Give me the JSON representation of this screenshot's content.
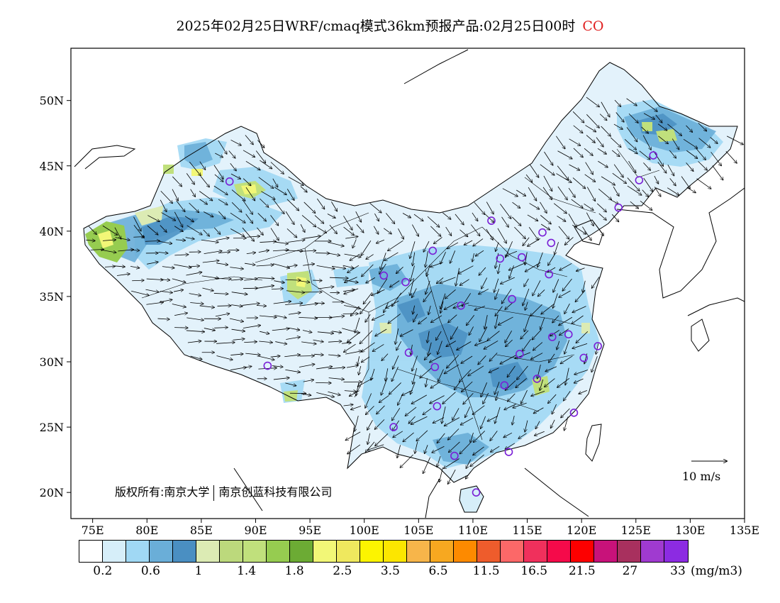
{
  "header": {
    "title": "2025年02月25日WRF/cmaq模式36km预报产品:02月25日00时",
    "pollutant": "CO"
  },
  "map": {
    "lon_range": [
      73,
      135
    ],
    "lat_range": [
      18,
      54
    ],
    "lon_ticks": [
      "75E",
      "80E",
      "85E",
      "90E",
      "95E",
      "100E",
      "105E",
      "110E",
      "115E",
      "120E",
      "125E",
      "130E",
      "135E"
    ],
    "lat_ticks": [
      "20N",
      "25N",
      "30N",
      "35N",
      "40N",
      "45N",
      "50N"
    ],
    "copyright_left": "版权所有:南京大学",
    "copyright_right": "南京创蓝科技有限公司",
    "wind_reference_label": "10 m/s",
    "stations": [
      [
        87.6,
        43.8
      ],
      [
        91.1,
        29.7
      ],
      [
        101.8,
        36.6
      ],
      [
        103.8,
        36.1
      ],
      [
        106.3,
        38.5
      ],
      [
        111.7,
        40.8
      ],
      [
        116.4,
        39.9
      ],
      [
        117.2,
        39.1
      ],
      [
        114.5,
        38.0
      ],
      [
        112.5,
        37.9
      ],
      [
        117.0,
        36.7
      ],
      [
        113.6,
        34.8
      ],
      [
        108.9,
        34.3
      ],
      [
        104.1,
        30.7
      ],
      [
        106.5,
        29.6
      ],
      [
        106.7,
        26.6
      ],
      [
        102.7,
        25.0
      ],
      [
        108.3,
        22.8
      ],
      [
        110.3,
        20.0
      ],
      [
        113.3,
        23.1
      ],
      [
        112.9,
        28.2
      ],
      [
        114.3,
        30.6
      ],
      [
        115.9,
        28.7
      ],
      [
        117.3,
        31.9
      ],
      [
        118.8,
        32.1
      ],
      [
        120.2,
        30.3
      ],
      [
        121.5,
        31.2
      ],
      [
        119.3,
        26.1
      ],
      [
        123.4,
        41.8
      ],
      [
        125.3,
        43.9
      ],
      [
        126.6,
        45.8
      ]
    ]
  },
  "legend": {
    "unit": "(mg/m3)",
    "colors": [
      "#ffffff",
      "#d6eef9",
      "#a0d8f4",
      "#6aaed8",
      "#4a8fc2",
      "#dcebb4",
      "#bcd97c",
      "#c0e07c",
      "#96cc50",
      "#6cab34",
      "#f2f777",
      "#efe85e",
      "#fcf400",
      "#fce600",
      "#f7b54a",
      "#f7a820",
      "#fd8a00",
      "#ee5c2c",
      "#fc6868",
      "#f0305c",
      "#f50a4a",
      "#fd0000",
      "#c8127a",
      "#a8305e",
      "#a03ad0",
      "#8c2be2"
    ],
    "labels": [
      {
        "text": "0.2",
        "at": 1
      },
      {
        "text": "0.6",
        "at": 3
      },
      {
        "text": "1",
        "at": 5
      },
      {
        "text": "1.4",
        "at": 7
      },
      {
        "text": "1.8",
        "at": 9
      },
      {
        "text": "2.5",
        "at": 11
      },
      {
        "text": "3.5",
        "at": 13
      },
      {
        "text": "6.5",
        "at": 15
      },
      {
        "text": "11.5",
        "at": 17
      },
      {
        "text": "16.5",
        "at": 19
      },
      {
        "text": "21.5",
        "at": 21
      },
      {
        "text": "27",
        "at": 23
      },
      {
        "text": "33",
        "at": 25
      }
    ]
  }
}
